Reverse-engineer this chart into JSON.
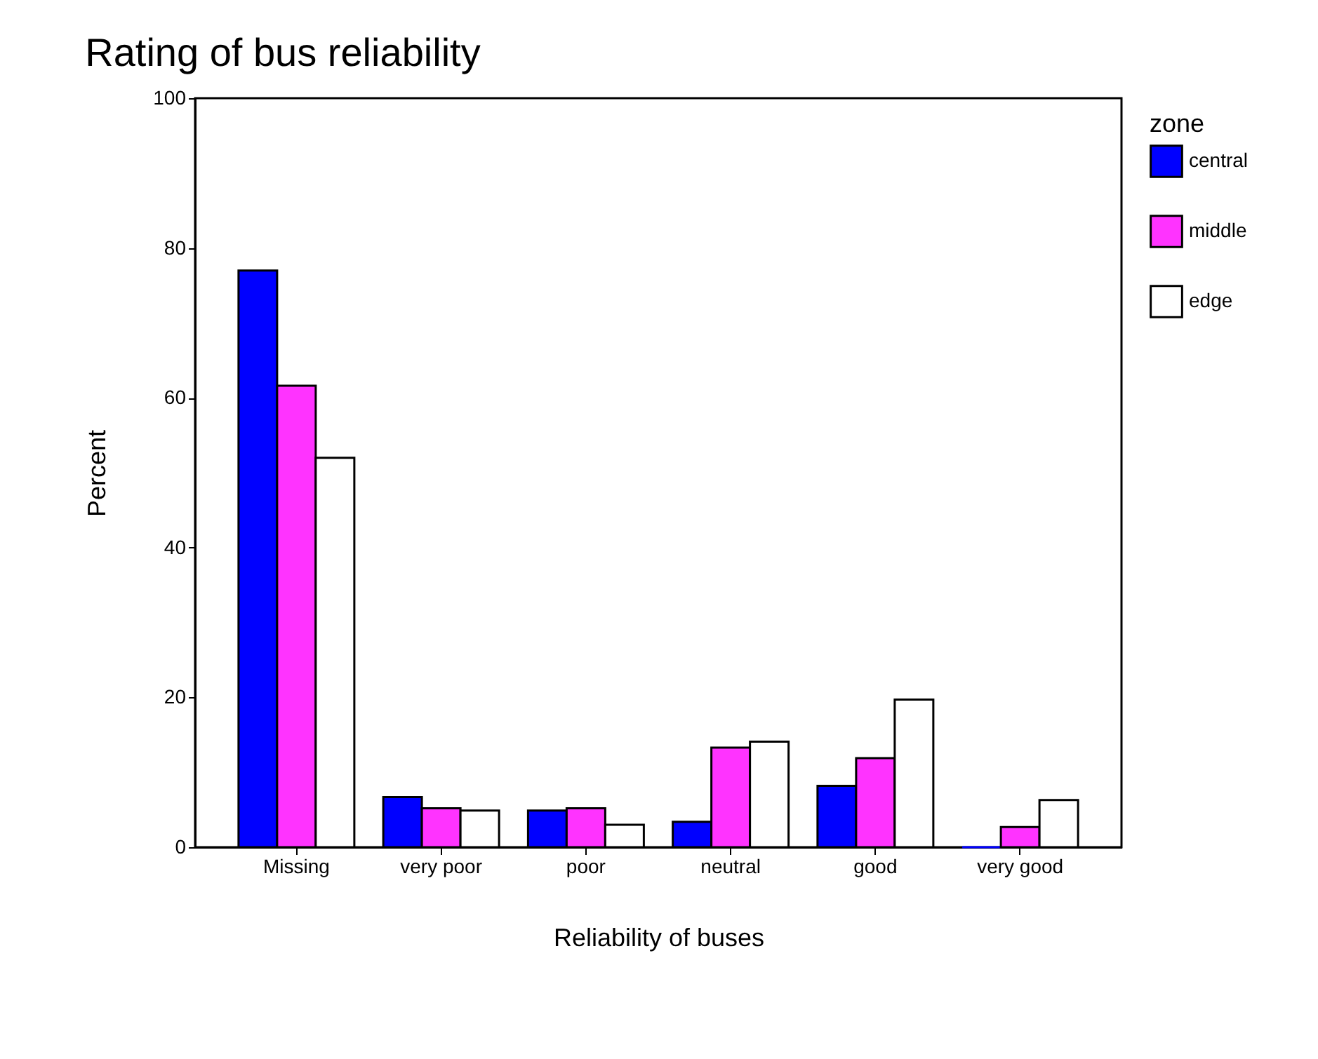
{
  "chart_data": {
    "type": "bar",
    "title": "Rating of bus reliability",
    "xlabel": "Reliability of buses",
    "ylabel": "Percent",
    "legend_title": "zone",
    "categories": [
      "Missing",
      "very poor",
      "poor",
      "neutral",
      "good",
      "very good"
    ],
    "series": [
      {
        "name": "central",
        "color": "#0000ff",
        "values": [
          77.0,
          6.7,
          4.9,
          3.4,
          8.2,
          0
        ]
      },
      {
        "name": "middle",
        "color": "#ff33ff",
        "values": [
          61.6,
          5.2,
          5.2,
          13.3,
          11.9,
          2.7
        ]
      },
      {
        "name": "edge",
        "color": "#ffffff",
        "values": [
          52.0,
          4.9,
          3.0,
          14.1,
          19.7,
          6.3
        ]
      }
    ],
    "ylim": [
      0,
      100
    ],
    "yticks": [
      0,
      20,
      40,
      60,
      80,
      100
    ],
    "grid": false,
    "legend": "right"
  }
}
